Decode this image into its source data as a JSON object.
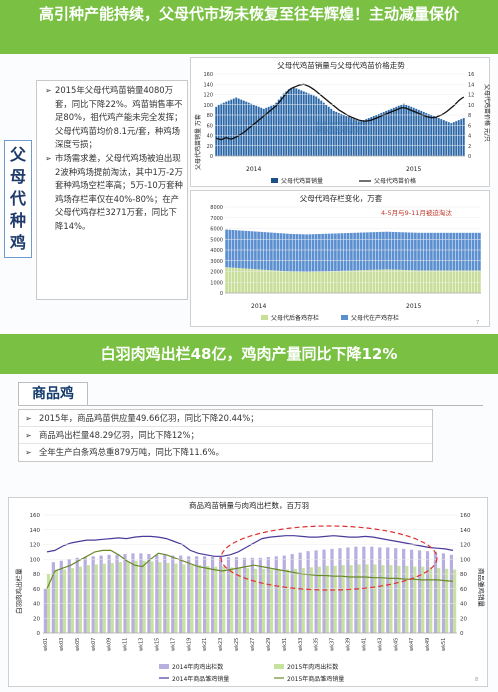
{
  "slide1": {
    "title": "高引种产能持续，父母代市场未恢复至往年辉煌！主动减量保价",
    "side_tag": [
      "父",
      "母",
      "代",
      "种",
      "鸡"
    ],
    "bullets": [
      "2015年父母代鸡苗销量4080万套，同比下降22%。鸡苗销售率不足80%，祖代鸡产能未完全发挥；父母代鸡苗均价8.1元/套，种鸡场深度亏损；",
      "市场需求差，父母代鸡场被迫出现2波种鸡场提前淘汰，其中1万-2万套种鸡场空栏率高；5万-10万套种鸡场存栏率仅在40%-80%；在产父母代鸡存栏3271万套，同比下降14%。"
    ],
    "chart1": {
      "title": "父母代鸡苗销量与父母代鸡苗价格走势",
      "ylabel_left": "父母代鸡苗销量 万套",
      "ylabel_right": "父母代鸡苗价格 元/只",
      "left_ticks": [
        "0",
        "20",
        "40",
        "60",
        "80",
        "100",
        "120",
        "140",
        "160"
      ],
      "right_ticks": [
        "0",
        "2",
        "4",
        "6",
        "8",
        "10",
        "12",
        "14",
        "16"
      ],
      "legend": [
        "父母代鸡苗销量",
        "父母代鸡苗价格"
      ],
      "year_labels": [
        "2014",
        "2015"
      ],
      "watermark": "博亚和讯"
    },
    "chart2": {
      "title": "父母代鸡存栏变化，万套",
      "annotation": "4-5月与9-11月被迫淘汰",
      "left_ticks": [
        "0",
        "1000",
        "2000",
        "3000",
        "4000",
        "5000",
        "6000",
        "7000",
        "8000"
      ],
      "legend": [
        "父母代后备鸡存栏",
        "父母代在产鸡存栏"
      ],
      "year_labels": [
        "2014",
        "2015"
      ],
      "page": "7"
    }
  },
  "slide2": {
    "title": "白羽肉鸡出栏48亿，鸡肉产量同比下降12%",
    "header": "商品鸡",
    "bullets": [
      "2015年，商品鸡苗供应量49.66亿羽，同比下降20.44%；",
      "商品鸡出栏量48.29亿羽，同比下降12%；",
      "全年生产白条鸡总重879万吨，同比下降11.6%。"
    ],
    "chart3": {
      "title": "商品鸡苗销量与肉鸡出栏数，百万羽",
      "ylabel_left": "白羽肉鸡出栏量",
      "ylabel_right": "商品雏鸡销量",
      "left_ticks": [
        "0",
        "20",
        "40",
        "60",
        "80",
        "100",
        "120",
        "140",
        "160"
      ],
      "right_ticks": [
        "0",
        "20",
        "40",
        "60",
        "80",
        "100",
        "120",
        "140",
        "160"
      ],
      "x_ticks": [
        "wk01",
        "wk03",
        "wk05",
        "wk07",
        "wk09",
        "wk11",
        "wk13",
        "wk15",
        "wk17",
        "wk19",
        "wk21",
        "wk23",
        "wk25",
        "wk27",
        "wk29",
        "wk31",
        "wk33",
        "wk35",
        "wk37",
        "wk39",
        "wk41",
        "wk43",
        "wk45",
        "wk47",
        "wk49",
        "wk51"
      ],
      "legend": [
        "2014年肉鸡出栏数",
        "2015年肉鸡出栏数",
        "2014年商品雏鸡销量",
        "2015年商品雏鸡销量"
      ],
      "page": "8"
    }
  },
  "colors": {
    "banner": "#7ac143",
    "bar_blue": "#5b8fd0",
    "bar_green": "#c8df9a",
    "line_black": "#111111",
    "lav_bar": "#b8aee0",
    "green_bar": "#c6e29d",
    "line_purple": "#4a3a9a",
    "line_olive": "#6a8a2a",
    "ellipse": "#e03030"
  },
  "chart_data": [
    {
      "type": "bar",
      "title": "父母代鸡苗销量与父母代鸡苗价格走势",
      "years": [
        "2014",
        "2015"
      ],
      "series": [
        {
          "name": "父母代鸡苗销量",
          "kind": "bar",
          "axis": "left",
          "values": [
            96,
            100,
            102,
            104,
            106,
            108,
            110,
            112,
            114,
            112,
            110,
            108,
            106,
            104,
            102,
            100,
            98,
            96,
            94,
            92,
            94,
            96,
            98,
            100,
            104,
            110,
            116,
            122,
            126,
            130,
            132,
            134,
            132,
            130,
            128,
            126,
            124,
            122,
            120,
            118,
            116,
            112,
            108,
            104,
            100,
            96,
            92,
            88,
            86,
            84,
            82,
            80,
            78,
            76,
            74,
            72,
            70,
            68,
            68,
            70,
            72,
            74,
            76,
            78,
            80,
            82,
            84,
            86,
            88,
            90,
            92,
            94,
            96,
            98,
            100,
            102,
            100,
            98,
            96,
            94,
            92,
            90,
            88,
            86,
            84,
            82,
            80,
            78,
            76,
            74,
            72,
            70,
            68,
            66,
            64,
            66,
            68,
            70,
            72,
            74
          ]
        },
        {
          "name": "父母代鸡苗价格",
          "kind": "line",
          "axis": "right",
          "values": [
            3.5,
            3.3,
            3.2,
            3.4,
            3.6,
            3.4,
            3.3,
            3.5,
            3.7,
            4.0,
            4.3,
            4.6,
            5.0,
            5.4,
            5.8,
            6.2,
            6.6,
            7.0,
            7.4,
            7.8,
            8.2,
            8.6,
            9.0,
            9.4,
            9.8,
            10.4,
            11.0,
            11.6,
            12.2,
            12.8,
            13.2,
            13.4,
            13.6,
            13.8,
            13.9,
            14.0,
            13.8,
            13.6,
            13.3,
            13.0,
            12.6,
            12.2,
            11.8,
            11.4,
            11.0,
            10.6,
            10.2,
            9.8,
            9.4,
            9.0,
            8.7,
            8.4,
            8.1,
            7.8,
            7.6,
            7.4,
            7.2,
            7.0,
            6.9,
            6.8,
            6.8,
            6.9,
            7.0,
            7.2,
            7.4,
            7.6,
            7.8,
            8.0,
            8.2,
            8.4,
            8.6,
            8.8,
            9.0,
            9.2,
            9.4,
            9.4,
            9.3,
            9.1,
            8.9,
            8.7,
            8.5,
            8.3,
            8.1,
            7.9,
            7.7,
            7.6,
            7.5,
            7.5,
            7.6,
            7.8,
            8.0,
            8.3,
            8.6,
            9.0,
            9.4,
            9.8,
            10.3,
            10.8,
            11.2,
            11.5
          ]
        }
      ]
    },
    {
      "type": "bar",
      "title": "父母代鸡存栏变化，万套",
      "years": [
        "2014",
        "2015"
      ],
      "series": [
        {
          "name": "父母代后备鸡存栏",
          "values": [
            2400,
            2380,
            2360,
            2340,
            2320,
            2300,
            2280,
            2260,
            2240,
            2220,
            2200,
            2180,
            2160,
            2140,
            2120,
            2100,
            2080,
            2060,
            2040,
            2020,
            2000,
            1990,
            1980,
            1970,
            1960,
            1950,
            1960,
            1970,
            1980,
            1990,
            2000,
            2010,
            2020,
            2030,
            2040,
            2050,
            2060,
            2070,
            2080,
            2090,
            2100,
            2110,
            2120,
            2130,
            2140,
            2150,
            2160,
            2170,
            2180,
            2190,
            2200,
            2190,
            2180,
            2170,
            2160,
            2150,
            2140,
            2130,
            2120,
            2110,
            2100,
            2100,
            2100,
            2100,
            2100,
            2100,
            2100,
            2100,
            2100,
            2100,
            2100,
            2100,
            2100,
            2100,
            2100,
            2100,
            2100,
            2100,
            2100,
            2100
          ]
        },
        {
          "name": "父母代在产鸡存栏",
          "values": [
            3500,
            3500,
            3500,
            3500,
            3500,
            3500,
            3500,
            3500,
            3500,
            3500,
            3500,
            3500,
            3500,
            3500,
            3500,
            3500,
            3500,
            3500,
            3500,
            3500,
            3500,
            3500,
            3500,
            3500,
            3500,
            3500,
            3500,
            3500,
            3500,
            3500,
            3500,
            3500,
            3500,
            3500,
            3500,
            3500,
            3500,
            3500,
            3500,
            3500,
            3500,
            3500,
            3500,
            3500,
            3500,
            3500,
            3500,
            3500,
            3500,
            3500,
            3500,
            3500,
            3500,
            3500,
            3500,
            3500,
            3500,
            3500,
            3500,
            3500,
            3500,
            3500,
            3500,
            3500,
            3500,
            3500,
            3500,
            3500,
            3500,
            3500,
            3500,
            3500,
            3500,
            3500,
            3500,
            3500,
            3500,
            3500,
            3500,
            3500
          ]
        }
      ]
    },
    {
      "type": "bar",
      "title": "商品鸡苗销量与肉鸡出栏数，百万羽",
      "x": [
        "wk01",
        "wk02",
        "wk03",
        "wk04",
        "wk05",
        "wk06",
        "wk07",
        "wk08",
        "wk09",
        "wk10",
        "wk11",
        "wk12",
        "wk13",
        "wk14",
        "wk15",
        "wk16",
        "wk17",
        "wk18",
        "wk19",
        "wk20",
        "wk21",
        "wk22",
        "wk23",
        "wk24",
        "wk25",
        "wk26",
        "wk27",
        "wk28",
        "wk29",
        "wk30",
        "wk31",
        "wk32",
        "wk33",
        "wk34",
        "wk35",
        "wk36",
        "wk37",
        "wk38",
        "wk39",
        "wk40",
        "wk41",
        "wk42",
        "wk43",
        "wk44",
        "wk45",
        "wk46",
        "wk47",
        "wk48",
        "wk49",
        "wk50",
        "wk51",
        "wk52"
      ],
      "series": [
        {
          "name": "2014年肉鸡出栏数",
          "kind": "bar",
          "axis": "left",
          "values": [
            60,
            96,
            98,
            100,
            102,
            103,
            104,
            105,
            106,
            106,
            107,
            108,
            108,
            107,
            106,
            106,
            105,
            105,
            104,
            104,
            104,
            103,
            103,
            103,
            103,
            102,
            102,
            102,
            103,
            104,
            105,
            107,
            109,
            111,
            112,
            113,
            114,
            115,
            116,
            117,
            117,
            117,
            116,
            116,
            115,
            114,
            113,
            112,
            111,
            110,
            108,
            106
          ]
        },
        {
          "name": "2015年肉鸡出栏数",
          "kind": "bar",
          "axis": "left",
          "values": [
            80,
            84,
            86,
            88,
            90,
            92,
            93,
            94,
            95,
            96,
            97,
            98,
            98,
            97,
            96,
            95,
            94,
            93,
            92,
            92,
            91,
            90,
            90,
            89,
            88,
            88,
            87,
            87,
            86,
            86,
            86,
            87,
            88,
            89,
            90,
            91,
            91,
            92,
            92,
            93,
            93,
            93,
            92,
            92,
            91,
            91,
            90,
            90,
            89,
            88,
            87,
            86
          ]
        },
        {
          "name": "2014年商品雏鸡销量",
          "kind": "line",
          "axis": "right",
          "values": [
            110,
            112,
            118,
            122,
            124,
            126,
            126,
            127,
            128,
            129,
            128,
            130,
            131,
            131,
            130,
            128,
            124,
            120,
            112,
            108,
            106,
            104,
            104,
            106,
            110,
            116,
            122,
            128,
            130,
            131,
            132,
            132,
            131,
            130,
            130,
            131,
            132,
            131,
            130,
            130,
            131,
            130,
            128,
            126,
            124,
            122,
            120,
            118,
            116,
            115,
            114,
            112
          ]
        },
        {
          "name": "2015年商品雏鸡销量",
          "kind": "line",
          "axis": "right",
          "values": [
            60,
            84,
            88,
            92,
            98,
            104,
            110,
            112,
            112,
            106,
            98,
            92,
            90,
            100,
            108,
            106,
            102,
            98,
            94,
            90,
            88,
            86,
            84,
            86,
            88,
            90,
            92,
            90,
            88,
            86,
            84,
            82,
            80,
            79,
            78,
            78,
            77,
            77,
            76,
            76,
            76,
            75,
            75,
            74,
            74,
            73,
            73,
            72,
            72,
            72,
            71,
            70
          ]
        }
      ],
      "ylim": [
        0,
        160
      ]
    }
  ]
}
